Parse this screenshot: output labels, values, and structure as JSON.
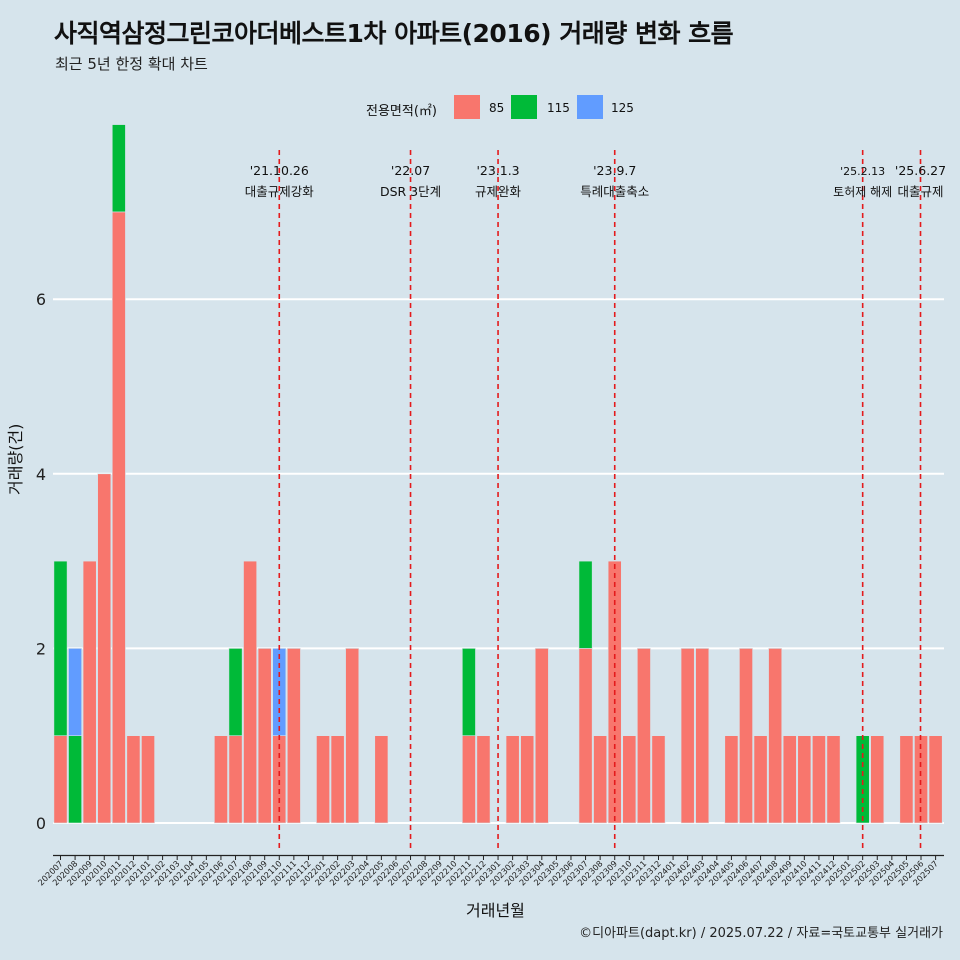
{
  "title": "사직역삼정그린코아더베스트1차 아파트(2016) 거래량 변화 흐름",
  "subtitle": "최근 5년 한정 확대 차트",
  "caption": "©디아파트(dapt.kr) / 2025.07.22 / 자료=국토교통부 실거래가",
  "colors": {
    "85": "#f8766d",
    "115": "#00ba38",
    "125": "#619cff",
    "vline": "#e41a1c",
    "background": "#d6e4ec",
    "grid": "#ffffff"
  },
  "chart_data": {
    "type": "bar",
    "xlabel": "거래년월",
    "ylabel": "거래량(건)",
    "ylim": [
      -0.35,
      7.3
    ],
    "yticks": [
      0,
      2,
      4,
      6
    ],
    "grid": true,
    "legend": {
      "title": "전용면적(㎡)",
      "position": "top",
      "entries": [
        "85",
        "115",
        "125"
      ]
    },
    "categories": [
      "202007",
      "202008",
      "202009",
      "202010",
      "202011",
      "202012",
      "202101",
      "202102",
      "202103",
      "202104",
      "202105",
      "202106",
      "202107",
      "202108",
      "202109",
      "202110",
      "202111",
      "202112",
      "202201",
      "202202",
      "202203",
      "202204",
      "202205",
      "202206",
      "202207",
      "202208",
      "202209",
      "202210",
      "202211",
      "202212",
      "202301",
      "202302",
      "202303",
      "202304",
      "202305",
      "202306",
      "202307",
      "202308",
      "202309",
      "202310",
      "202311",
      "202312",
      "202401",
      "202402",
      "202403",
      "202404",
      "202405",
      "202406",
      "202407",
      "202408",
      "202409",
      "202410",
      "202411",
      "202412",
      "202501",
      "202502",
      "202503",
      "202504",
      "202505",
      "202506",
      "202507"
    ],
    "series": [
      {
        "name": "85",
        "values": [
          1,
          0,
          3,
          4,
          7,
          1,
          1,
          0,
          0,
          0,
          0,
          1,
          1,
          3,
          2,
          1,
          2,
          0,
          1,
          1,
          2,
          0,
          1,
          0,
          0,
          0,
          0,
          0,
          1,
          1,
          0,
          1,
          1,
          2,
          0,
          0,
          2,
          1,
          3,
          1,
          2,
          1,
          0,
          2,
          2,
          0,
          1,
          2,
          1,
          2,
          1,
          1,
          1,
          1,
          0,
          0,
          1,
          0,
          1,
          1,
          1
        ]
      },
      {
        "name": "115",
        "values": [
          2,
          1,
          0,
          0,
          1,
          0,
          0,
          0,
          0,
          0,
          0,
          0,
          1,
          0,
          0,
          0,
          0,
          0,
          0,
          0,
          0,
          0,
          0,
          0,
          0,
          0,
          0,
          0,
          1,
          0,
          0,
          0,
          0,
          0,
          0,
          0,
          1,
          0,
          0,
          0,
          0,
          0,
          0,
          0,
          0,
          0,
          0,
          0,
          0,
          0,
          0,
          0,
          0,
          0,
          0,
          1,
          0,
          0,
          0,
          0,
          0
        ]
      },
      {
        "name": "125",
        "values": [
          0,
          1,
          0,
          0,
          0,
          0,
          0,
          0,
          0,
          0,
          0,
          0,
          0,
          0,
          0,
          1,
          0,
          0,
          0,
          0,
          0,
          0,
          0,
          0,
          0,
          0,
          0,
          0,
          0,
          0,
          0,
          0,
          0,
          0,
          0,
          0,
          0,
          0,
          0,
          0,
          0,
          0,
          0,
          0,
          0,
          0,
          0,
          0,
          0,
          0,
          0,
          0,
          0,
          0,
          0,
          0,
          0,
          0,
          0,
          0,
          0
        ]
      }
    ],
    "annotations": [
      {
        "date": "'21.10.26",
        "label": "대출규제강화",
        "x": "202110"
      },
      {
        "date": "'22.07",
        "label": "DSR 3단계",
        "x": "202207"
      },
      {
        "date": "'23.1.3",
        "label": "규제완화",
        "x": "202301"
      },
      {
        "date": "'23.9.7",
        "label": "특례대출축소",
        "x": "202309"
      },
      {
        "date": "'25.2.13",
        "label": "토허제 해제",
        "x": "202502"
      },
      {
        "date": "'25.6.27",
        "label": "대출규제",
        "x": "202506"
      }
    ]
  }
}
